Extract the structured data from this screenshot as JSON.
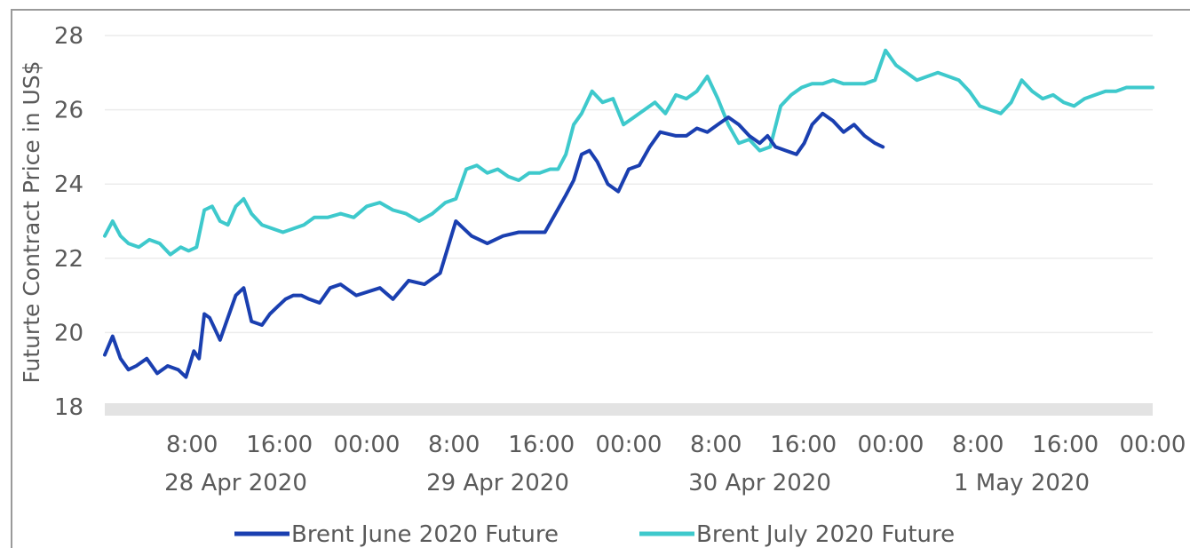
{
  "chart_data": {
    "type": "line",
    "title": "",
    "ylabel": "Futurte Contract Price in US$",
    "xlabel": "",
    "ylim": [
      18,
      28
    ],
    "yticks": [
      18,
      20,
      22,
      24,
      26,
      28
    ],
    "grid": "horizontal",
    "legend_position": "bottom",
    "x_tick_labels": [
      {
        "time": "8:00",
        "x": 0.333
      },
      {
        "time": "16:00",
        "x": 0.667
      },
      {
        "time": "00:00",
        "x": 1.0
      },
      {
        "time": "8:00",
        "x": 1.333
      },
      {
        "time": "16:00",
        "x": 1.667
      },
      {
        "time": "00:00",
        "x": 2.0
      },
      {
        "time": "8:00",
        "x": 2.333
      },
      {
        "time": "16:00",
        "x": 2.667
      },
      {
        "time": "00:00",
        "x": 3.0
      },
      {
        "time": "8:00",
        "x": 3.333
      },
      {
        "time": "16:00",
        "x": 3.667
      },
      {
        "time": "00:00",
        "x": 4.0
      }
    ],
    "x_day_labels": [
      {
        "label": "28 Apr 2020",
        "x": 0.5
      },
      {
        "label": "29 Apr 2020",
        "x": 1.5
      },
      {
        "label": "30 Apr 2020",
        "x": 2.5
      },
      {
        "label": "1 May 2020",
        "x": 3.5
      }
    ],
    "x_unit": "days since 28 Apr 2020 00:00",
    "xlim": [
      0.0,
      4.0
    ],
    "series": [
      {
        "name": "Brent June 2020 Future",
        "color": "#1a3fb0",
        "x": [
          0.0,
          0.03,
          0.06,
          0.09,
          0.12,
          0.16,
          0.2,
          0.24,
          0.28,
          0.31,
          0.34,
          0.36,
          0.38,
          0.4,
          0.42,
          0.44,
          0.47,
          0.5,
          0.53,
          0.56,
          0.6,
          0.63,
          0.66,
          0.69,
          0.72,
          0.75,
          0.78,
          0.82,
          0.86,
          0.9,
          0.96,
          1.05,
          1.1,
          1.16,
          1.22,
          1.28,
          1.34,
          1.4,
          1.46,
          1.52,
          1.58,
          1.63,
          1.68,
          1.72,
          1.76,
          1.79,
          1.82,
          1.85,
          1.88,
          1.92,
          1.96,
          2.0,
          2.04,
          2.08,
          2.12,
          2.18,
          2.22,
          2.26,
          2.3,
          2.34,
          2.38,
          2.42,
          2.46,
          2.5,
          2.53,
          2.56,
          2.6,
          2.64,
          2.67,
          2.7,
          2.74,
          2.78,
          2.82,
          2.86,
          2.9,
          2.94,
          2.97
        ],
        "values": [
          19.4,
          19.9,
          19.3,
          19.0,
          19.1,
          19.3,
          18.9,
          19.1,
          19.0,
          18.8,
          19.5,
          19.3,
          20.5,
          20.4,
          20.1,
          19.8,
          20.4,
          21.0,
          21.2,
          20.3,
          20.2,
          20.5,
          20.7,
          20.9,
          21.0,
          21.0,
          20.9,
          20.8,
          21.2,
          21.3,
          21.0,
          21.2,
          20.9,
          21.4,
          21.3,
          21.6,
          23.0,
          22.6,
          22.4,
          22.6,
          22.7,
          22.7,
          22.7,
          23.2,
          23.7,
          24.1,
          24.8,
          24.9,
          24.6,
          24.0,
          23.8,
          24.4,
          24.5,
          25.0,
          25.4,
          25.3,
          25.3,
          25.5,
          25.4,
          25.6,
          25.8,
          25.6,
          25.3,
          25.1,
          25.3,
          25.0,
          24.9,
          24.8,
          25.1,
          25.6,
          25.9,
          25.7,
          25.4,
          25.6,
          25.3,
          25.1,
          25.0
        ]
      },
      {
        "name": "Brent July 2020 Future",
        "color": "#3ec9cc",
        "x": [
          0.0,
          0.03,
          0.06,
          0.09,
          0.13,
          0.17,
          0.21,
          0.25,
          0.29,
          0.32,
          0.35,
          0.38,
          0.41,
          0.44,
          0.47,
          0.5,
          0.53,
          0.56,
          0.6,
          0.64,
          0.68,
          0.72,
          0.76,
          0.8,
          0.85,
          0.9,
          0.95,
          1.0,
          1.05,
          1.1,
          1.15,
          1.2,
          1.25,
          1.3,
          1.34,
          1.38,
          1.42,
          1.46,
          1.5,
          1.54,
          1.58,
          1.62,
          1.66,
          1.7,
          1.73,
          1.76,
          1.79,
          1.82,
          1.86,
          1.9,
          1.94,
          1.98,
          2.02,
          2.06,
          2.1,
          2.14,
          2.18,
          2.22,
          2.26,
          2.3,
          2.34,
          2.38,
          2.42,
          2.46,
          2.5,
          2.54,
          2.58,
          2.62,
          2.66,
          2.7,
          2.74,
          2.78,
          2.82,
          2.86,
          2.9,
          2.94,
          2.98,
          3.02,
          3.06,
          3.1,
          3.14,
          3.18,
          3.22,
          3.26,
          3.3,
          3.34,
          3.38,
          3.42,
          3.46,
          3.5,
          3.54,
          3.58,
          3.62,
          3.66,
          3.7,
          3.74,
          3.78,
          3.82,
          3.86,
          3.9,
          3.94,
          3.98,
          4.0
        ],
        "values": [
          22.6,
          23.0,
          22.6,
          22.4,
          22.3,
          22.5,
          22.4,
          22.1,
          22.3,
          22.2,
          22.3,
          23.3,
          23.4,
          23.0,
          22.9,
          23.4,
          23.6,
          23.2,
          22.9,
          22.8,
          22.7,
          22.8,
          22.9,
          23.1,
          23.1,
          23.2,
          23.1,
          23.4,
          23.5,
          23.3,
          23.2,
          23.0,
          23.2,
          23.5,
          23.6,
          24.4,
          24.5,
          24.3,
          24.4,
          24.2,
          24.1,
          24.3,
          24.3,
          24.4,
          24.4,
          24.8,
          25.6,
          25.9,
          26.5,
          26.2,
          26.3,
          25.6,
          25.8,
          26.0,
          26.2,
          25.9,
          26.4,
          26.3,
          26.5,
          26.9,
          26.3,
          25.6,
          25.1,
          25.2,
          24.9,
          25.0,
          26.1,
          26.4,
          26.6,
          26.7,
          26.7,
          26.8,
          26.7,
          26.7,
          26.7,
          26.8,
          27.6,
          27.2,
          27.0,
          26.8,
          26.9,
          27.0,
          26.9,
          26.8,
          26.5,
          26.1,
          26.0,
          25.9,
          26.2,
          26.8,
          26.5,
          26.3,
          26.4,
          26.2,
          26.1,
          26.3,
          26.4,
          26.5,
          26.5,
          26.6,
          26.6,
          26.6,
          26.6
        ]
      }
    ]
  }
}
